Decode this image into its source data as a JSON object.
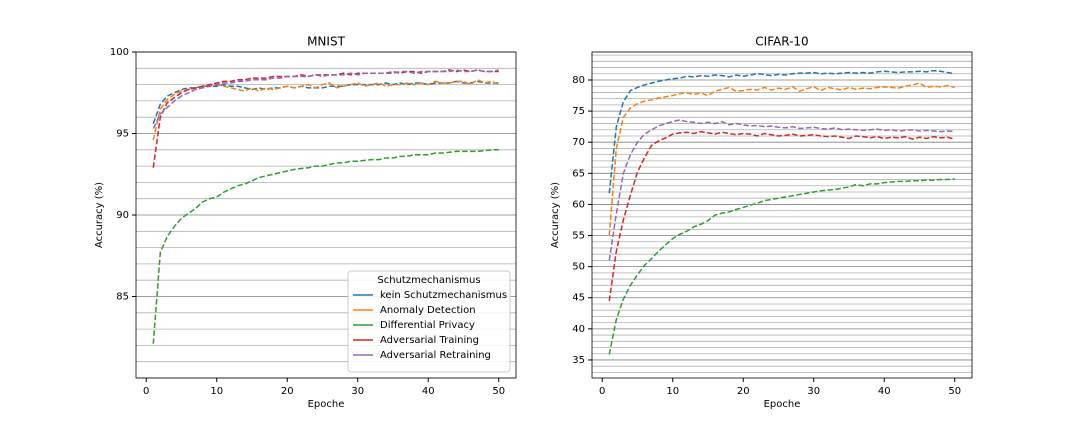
{
  "chart_data": [
    {
      "type": "line",
      "title": "MNIST",
      "xlabel": "Epoche",
      "ylabel": "Accuracy (%)",
      "x": [
        1,
        2,
        3,
        4,
        5,
        6,
        7,
        8,
        9,
        10,
        11,
        12,
        13,
        14,
        15,
        16,
        17,
        18,
        19,
        20,
        21,
        22,
        23,
        24,
        25,
        26,
        27,
        28,
        29,
        30,
        31,
        32,
        33,
        34,
        35,
        36,
        37,
        38,
        39,
        40,
        41,
        42,
        43,
        44,
        45,
        46,
        47,
        48,
        49,
        50
      ],
      "xlim": [
        -1.45,
        52.45
      ],
      "xticks": [
        0,
        10,
        20,
        30,
        40,
        50
      ],
      "ylim": [
        80,
        100
      ],
      "yticks": [
        85,
        90,
        95,
        100
      ],
      "grid": "y",
      "minor_grid_step": 1,
      "line_style": "dashed",
      "legend": "lower right",
      "legend_title": "Schutzmechanismus",
      "series": [
        {
          "name": "kein Schutzmechanismus",
          "color": "#1f77b4",
          "values": [
            95.6,
            96.8,
            97.3,
            97.5,
            97.7,
            97.8,
            97.8,
            97.9,
            97.9,
            97.9,
            98.0,
            97.9,
            97.9,
            97.8,
            97.7,
            97.8,
            97.7,
            97.8,
            97.8,
            97.9,
            97.8,
            97.9,
            97.8,
            97.8,
            97.8,
            97.9,
            97.9,
            97.9,
            98.0,
            98.0,
            98.0,
            98.0,
            98.0,
            98.1,
            98.0,
            98.1,
            98.0,
            98.1,
            98.1,
            98.0,
            98.1,
            98.1,
            98.1,
            98.2,
            98.1,
            98.1,
            98.2,
            98.1,
            98.1,
            98.1
          ]
        },
        {
          "name": "Anomaly Detection",
          "color": "#ff7f0e",
          "values": [
            94.6,
            96.5,
            97.1,
            97.4,
            97.6,
            97.7,
            97.8,
            97.9,
            98.0,
            98.0,
            97.9,
            97.8,
            97.7,
            97.6,
            97.8,
            97.6,
            97.8,
            97.7,
            97.8,
            97.9,
            97.8,
            97.9,
            98.0,
            97.8,
            98.0,
            98.1,
            97.8,
            97.9,
            98.0,
            98.1,
            97.9,
            98.0,
            98.1,
            97.9,
            98.0,
            98.0,
            98.1,
            98.0,
            98.1,
            98.0,
            98.2,
            98.1,
            98.1,
            98.2,
            98.2,
            98.0,
            98.3,
            98.1,
            98.2,
            98.0
          ]
        },
        {
          "name": "Differential Privacy",
          "color": "#2ca02c",
          "values": [
            82.1,
            87.7,
            88.7,
            89.3,
            89.8,
            90.1,
            90.4,
            90.8,
            91.0,
            91.1,
            91.4,
            91.6,
            91.8,
            91.9,
            92.1,
            92.3,
            92.4,
            92.5,
            92.6,
            92.7,
            92.8,
            92.85,
            92.9,
            93.0,
            93.0,
            93.1,
            93.2,
            93.2,
            93.3,
            93.3,
            93.35,
            93.4,
            93.4,
            93.5,
            93.5,
            93.6,
            93.6,
            93.7,
            93.7,
            93.7,
            93.8,
            93.8,
            93.85,
            93.9,
            93.9,
            93.9,
            93.9,
            93.95,
            94.0,
            94.0
          ]
        },
        {
          "name": "Adversarial Training",
          "color": "#d62728",
          "values": [
            92.9,
            96.0,
            96.9,
            97.2,
            97.5,
            97.7,
            97.8,
            97.9,
            98.0,
            98.1,
            98.2,
            98.2,
            98.3,
            98.3,
            98.4,
            98.4,
            98.4,
            98.5,
            98.5,
            98.5,
            98.5,
            98.6,
            98.5,
            98.6,
            98.6,
            98.6,
            98.6,
            98.7,
            98.6,
            98.7,
            98.7,
            98.7,
            98.7,
            98.7,
            98.8,
            98.7,
            98.8,
            98.8,
            98.7,
            98.8,
            98.8,
            98.8,
            98.9,
            98.8,
            98.9,
            98.8,
            98.9,
            98.8,
            98.8,
            98.8
          ]
        },
        {
          "name": "Adversarial Retraining",
          "color": "#9467bd",
          "values": [
            95.3,
            96.2,
            96.6,
            97.0,
            97.3,
            97.5,
            97.7,
            97.8,
            97.9,
            98.0,
            98.1,
            98.1,
            98.2,
            98.2,
            98.3,
            98.3,
            98.3,
            98.4,
            98.4,
            98.5,
            98.5,
            98.5,
            98.5,
            98.6,
            98.5,
            98.6,
            98.6,
            98.6,
            98.7,
            98.6,
            98.7,
            98.7,
            98.7,
            98.7,
            98.7,
            98.8,
            98.8,
            98.7,
            98.8,
            98.8,
            98.8,
            98.8,
            98.8,
            98.9,
            98.8,
            98.8,
            98.9,
            98.8,
            98.8,
            98.9
          ]
        }
      ]
    },
    {
      "type": "line",
      "title": "CIFAR-10",
      "xlabel": "Epoche",
      "ylabel": "Accuracy (%)",
      "x": [
        1,
        2,
        3,
        4,
        5,
        6,
        7,
        8,
        9,
        10,
        11,
        12,
        13,
        14,
        15,
        16,
        17,
        18,
        19,
        20,
        21,
        22,
        23,
        24,
        25,
        26,
        27,
        28,
        29,
        30,
        31,
        32,
        33,
        34,
        35,
        36,
        37,
        38,
        39,
        40,
        41,
        42,
        43,
        44,
        45,
        46,
        47,
        48,
        49,
        50
      ],
      "xlim": [
        -1.45,
        52.45
      ],
      "xticks": [
        0,
        10,
        20,
        30,
        40,
        50
      ],
      "ylim": [
        32.1,
        84.5
      ],
      "yticks": [
        35,
        40,
        45,
        50,
        55,
        60,
        65,
        70,
        75,
        80
      ],
      "grid": "y",
      "minor_grid_step": 1,
      "line_style": "dashed",
      "series": [
        {
          "color": "#1f77b4",
          "values": [
            61.8,
            72.5,
            76.5,
            78.3,
            78.8,
            79.2,
            79.5,
            79.8,
            80.0,
            80.2,
            80.3,
            80.6,
            80.5,
            80.7,
            80.6,
            80.8,
            80.7,
            80.5,
            80.8,
            80.6,
            80.8,
            81.0,
            80.9,
            80.7,
            80.9,
            80.8,
            81.0,
            81.1,
            81.1,
            81.2,
            81.0,
            81.1,
            81.0,
            81.1,
            81.2,
            81.1,
            81.2,
            81.1,
            81.3,
            81.4,
            81.3,
            81.2,
            81.3,
            81.3,
            81.4,
            81.3,
            81.5,
            81.4,
            81.2,
            81.0
          ]
        },
        {
          "color": "#ff7f0e",
          "values": [
            55,
            69,
            74,
            75.5,
            76.2,
            76.6,
            76.8,
            77.1,
            77.3,
            77.5,
            77.8,
            77.9,
            77.7,
            77.9,
            77.5,
            78.2,
            78.5,
            78.8,
            78.2,
            78.3,
            78.5,
            78.4,
            78.8,
            78.4,
            78.7,
            78.5,
            78.9,
            78.2,
            78.6,
            78.9,
            78.3,
            78.8,
            78.6,
            78.4,
            78.8,
            78.5,
            78.7,
            78.6,
            78.8,
            78.9,
            78.8,
            78.7,
            79.0,
            79.2,
            79.5,
            78.8,
            79.0,
            78.9,
            79.1,
            78.8
          ]
        },
        {
          "color": "#2ca02c",
          "values": [
            35.9,
            41.5,
            44.8,
            47.0,
            48.7,
            50.2,
            51.3,
            52.5,
            53.5,
            54.5,
            55.2,
            55.7,
            56.4,
            56.8,
            57.4,
            58.3,
            58.6,
            58.8,
            59.2,
            59.5,
            59.9,
            60.2,
            60.6,
            60.8,
            61.0,
            61.2,
            61.4,
            61.6,
            61.8,
            62.0,
            62.2,
            62.3,
            62.4,
            62.6,
            62.8,
            63.2,
            63.0,
            63.3,
            63.3,
            63.5,
            63.6,
            63.7,
            63.7,
            63.8,
            63.8,
            63.9,
            63.9,
            64.0,
            64.0,
            64.1
          ]
        },
        {
          "color": "#d62728",
          "values": [
            44.5,
            52.5,
            57.5,
            61.5,
            65.2,
            67.5,
            69.5,
            70.2,
            70.7,
            71.3,
            71.5,
            71.6,
            71.4,
            71.7,
            71.5,
            71.3,
            71.6,
            71.4,
            71.2,
            71.4,
            71.3,
            71.0,
            71.4,
            71.2,
            71.0,
            71.1,
            71.3,
            71.0,
            71.1,
            71.2,
            71.0,
            70.9,
            71.0,
            70.8,
            70.6,
            71.0,
            70.9,
            70.7,
            70.9,
            70.6,
            70.8,
            70.7,
            70.9,
            70.5,
            70.8,
            70.6,
            70.9,
            70.7,
            70.8,
            70.5
          ]
        },
        {
          "color": "#9467bd",
          "values": [
            51,
            58.5,
            65,
            68,
            70,
            71.3,
            72.0,
            72.6,
            73.0,
            73.3,
            73.6,
            73.3,
            73.2,
            73.0,
            73.2,
            73.0,
            73.3,
            72.8,
            73.0,
            72.8,
            72.6,
            72.7,
            72.5,
            72.6,
            72.4,
            72.3,
            72.5,
            72.2,
            72.3,
            72.4,
            72.2,
            72.1,
            72.3,
            72.0,
            72.1,
            72.0,
            71.9,
            72.0,
            72.1,
            71.9,
            72.0,
            71.8,
            71.9,
            72.0,
            71.8,
            71.9,
            71.8,
            71.7,
            71.8,
            71.7
          ]
        }
      ]
    }
  ]
}
